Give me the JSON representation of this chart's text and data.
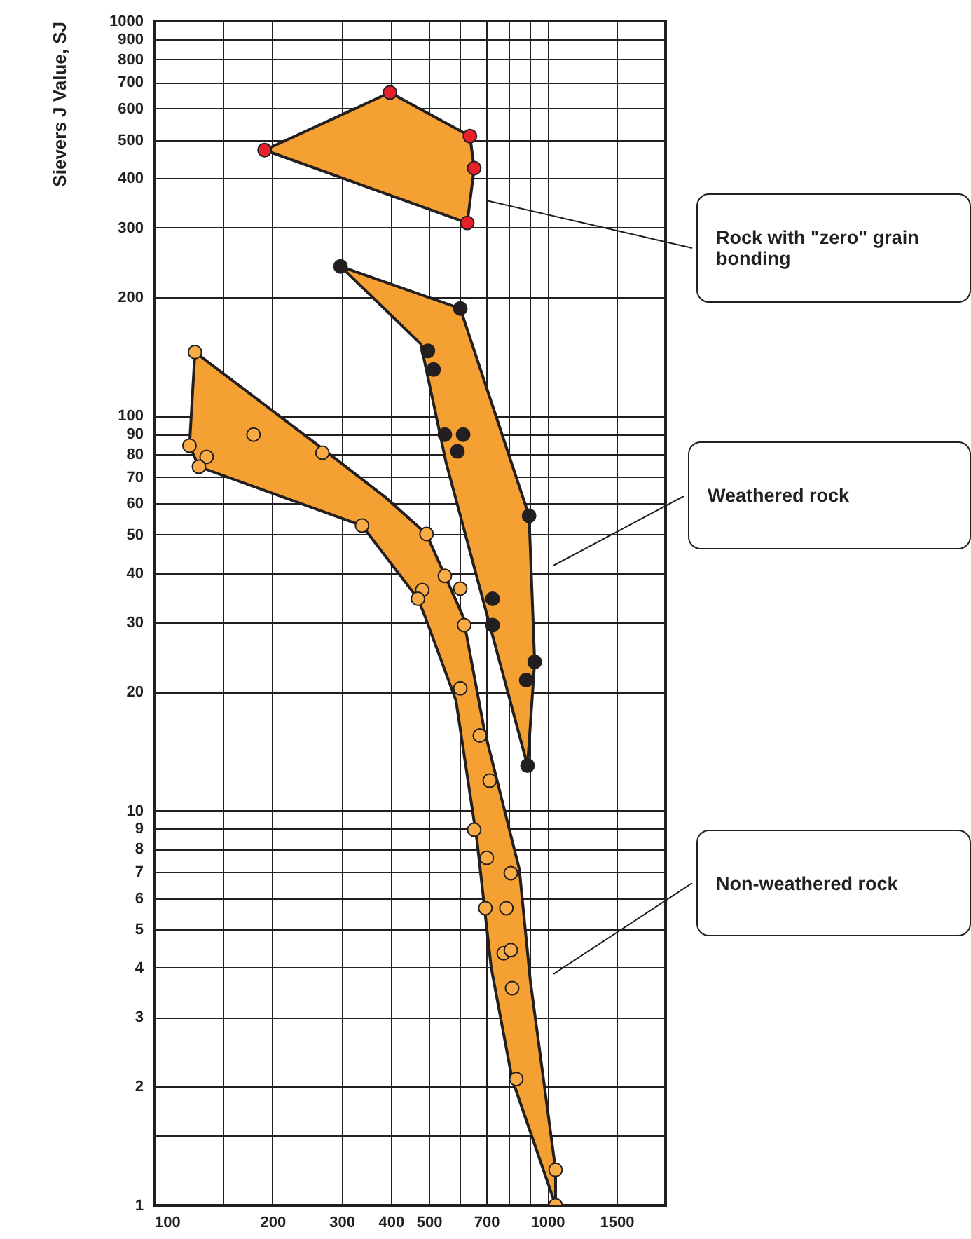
{
  "chart_data": {
    "type": "scatter",
    "ylabel": "Sievers J Value, SJ",
    "log": "xy",
    "grid": true,
    "xlim": [
      100,
      2000
    ],
    "xticks": [
      100,
      {
        "value": 150,
        "label": null
      },
      200,
      300,
      400,
      500,
      {
        "value": 600,
        "label": null
      },
      700,
      {
        "value": 800,
        "label": null
      },
      {
        "value": 900,
        "label": null
      },
      1000,
      1500
    ],
    "ylim": [
      1,
      1000
    ],
    "yticks": [
      1,
      {
        "value": 1.5,
        "label": null
      },
      2,
      3,
      4,
      5,
      6,
      7,
      8,
      9,
      10,
      20,
      30,
      40,
      50,
      60,
      70,
      80,
      90,
      100,
      200,
      300,
      400,
      500,
      600,
      700,
      800,
      900,
      1000
    ],
    "annotations": [
      "Rock with \"zero\" grain bonding",
      "Weathered rock",
      "Non-weathered rock"
    ],
    "series": [
      {
        "type": "area",
        "color": "#f5a033",
        "x": [
          191,
          398,
          636,
          652,
          626
        ],
        "values": [
          471,
          659,
          511,
          424,
          308
        ]
      },
      {
        "type": "area",
        "color": "#f5a033",
        "x": [
          298,
          601,
          899,
          929,
          891,
          553,
          477
        ],
        "values": [
          239,
          187,
          55.8,
          23.8,
          13.0,
          76.1,
          152
        ]
      },
      {
        "type": "area",
        "color": "#f5a033",
        "x": [
          127,
          268,
          388,
          493,
          611,
          691,
          849,
          906,
          1050,
          1050,
          814,
          720,
          663,
          586,
          489,
          469,
          338,
          130,
          123
        ],
        "values": [
          145,
          82.6,
          62.1,
          50.2,
          31.0,
          16.1,
          7.11,
          3.7,
          1.23,
          1,
          2.09,
          4.01,
          8.37,
          19.0,
          31.0,
          34.4,
          52.7,
          74.3,
          84
        ]
      },
      {
        "type": "scatter",
        "color": "#e8202a",
        "x": [
          191,
          398,
          636,
          652,
          626
        ],
        "values": [
          471,
          659,
          511,
          424,
          308
        ]
      },
      {
        "type": "scatter",
        "color": "#231f20",
        "x": [
          298,
          601,
          497,
          514,
          549,
          611,
          591,
          899,
          726,
          726,
          929,
          884,
          891
        ],
        "values": [
          239,
          187,
          146,
          131,
          89.6,
          89.6,
          81.3,
          55.8,
          34.4,
          29.5,
          23.8,
          21.4,
          13.0
        ]
      },
      {
        "type": "scatter",
        "color": "#f9ac45",
        "x": [
          127,
          179,
          123,
          136,
          130,
          268,
          338,
          493,
          549,
          601,
          481,
          469,
          615,
          601,
          674,
          714,
          652,
          702,
          808,
          696,
          787,
          775,
          808,
          814,
          834,
          1050,
          1050
        ],
        "values": [
          145,
          89.6,
          84,
          78.7,
          74.3,
          80.6,
          52.7,
          50.2,
          39.3,
          36.5,
          36.2,
          34.4,
          29.5,
          20.4,
          15.5,
          11.9,
          8.94,
          7.59,
          6.94,
          5.66,
          5.66,
          4.35,
          4.43,
          3.55,
          2.09,
          1.23,
          1
        ]
      }
    ]
  }
}
